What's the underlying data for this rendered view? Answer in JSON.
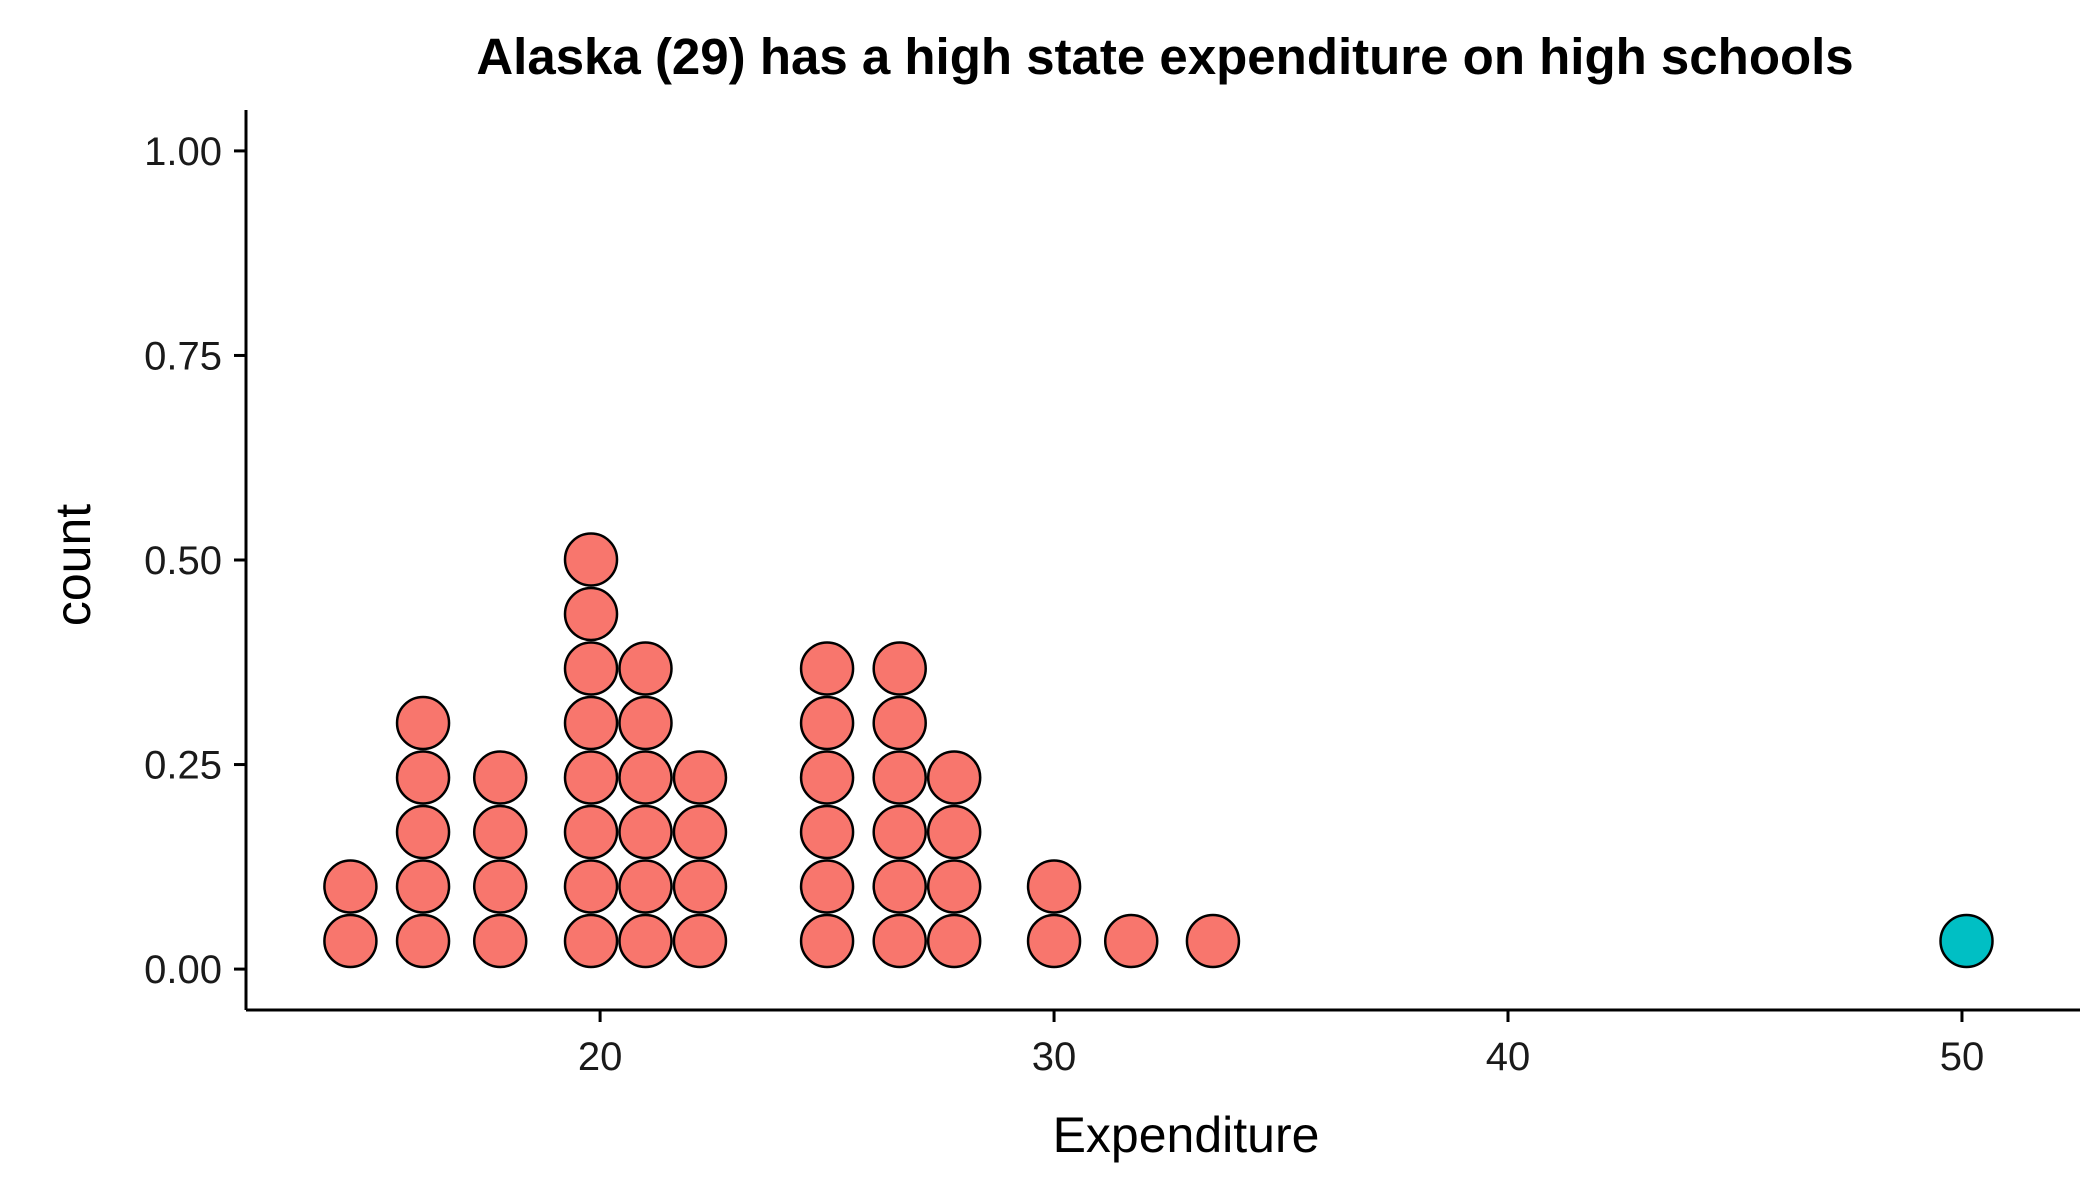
{
  "chart_data": {
    "type": "dotplot",
    "title": "Alaska (29) has a high state expenditure on high schools",
    "xlabel": "Expenditure",
    "ylabel": "count",
    "xlim": [
      12.2,
      52.6
    ],
    "ylim": [
      -0.05,
      1.05
    ],
    "xticks": [
      20,
      30,
      40,
      50
    ],
    "xtick_labels": [
      "20",
      "30",
      "40",
      "50"
    ],
    "yticks": [
      0,
      0.25,
      0.5,
      0.75,
      1
    ],
    "ytick_labels": [
      "0.00",
      "0.25",
      "0.50",
      "0.75",
      "1.00"
    ],
    "grid": false,
    "legend": "none",
    "colors": {
      "default": "#F8766D",
      "highlight": "#00BFC4"
    },
    "stacks": [
      {
        "x": 14.5,
        "count": 2,
        "highlight": false
      },
      {
        "x": 16.1,
        "count": 5,
        "highlight": false
      },
      {
        "x": 17.8,
        "count": 4,
        "highlight": false
      },
      {
        "x": 19.8,
        "count": 8,
        "highlight": false
      },
      {
        "x": 21.0,
        "count": 6,
        "highlight": false
      },
      {
        "x": 22.2,
        "count": 4,
        "highlight": false
      },
      {
        "x": 25.0,
        "count": 6,
        "highlight": false
      },
      {
        "x": 26.6,
        "count": 6,
        "highlight": false
      },
      {
        "x": 27.8,
        "count": 4,
        "highlight": false
      },
      {
        "x": 30.0,
        "count": 2,
        "highlight": false
      },
      {
        "x": 31.7,
        "count": 1,
        "highlight": false
      },
      {
        "x": 33.5,
        "count": 1,
        "highlight": false
      },
      {
        "x": 50.1,
        "count": 1,
        "highlight": true
      }
    ]
  }
}
